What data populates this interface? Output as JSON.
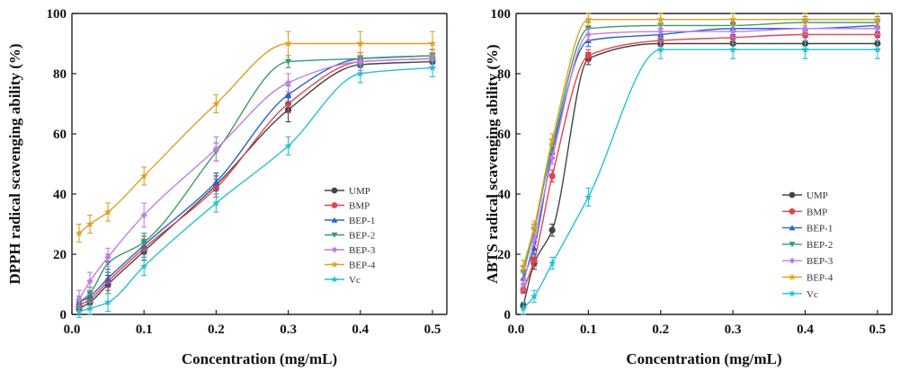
{
  "chart_data": [
    {
      "type": "line",
      "ylabel": "DPPH radical scavenging ability (%)",
      "xlabel": "Concentration (mg/mL)",
      "xlim": [
        0,
        0.52
      ],
      "ylim": [
        0,
        100
      ],
      "xticks": [
        0.0,
        0.1,
        0.2,
        0.3,
        0.4,
        0.5
      ],
      "xtick_labels": [
        "0.0",
        "0.1",
        "0.2",
        "0.3",
        "0.4",
        "0.5"
      ],
      "yticks": [
        0,
        20,
        40,
        60,
        80,
        100
      ],
      "ytick_labels": [
        "0",
        "20",
        "40",
        "60",
        "80",
        "100"
      ],
      "legend_position": "bottom-right",
      "grid": false,
      "x": [
        0.01,
        0.025,
        0.05,
        0.1,
        0.2,
        0.3,
        0.4,
        0.5
      ],
      "series": [
        {
          "name": "UMP",
          "color": "#444444",
          "marker": "circle",
          "values": [
            2,
            4,
            10,
            21,
            43,
            68,
            83,
            84
          ],
          "errors": [
            2,
            2,
            3,
            3,
            3,
            4,
            3,
            2
          ]
        },
        {
          "name": "BMP",
          "color": "#e8424b",
          "marker": "circle",
          "values": [
            3,
            5,
            11,
            22,
            42,
            70,
            84,
            85
          ],
          "errors": [
            2,
            2,
            3,
            3,
            3,
            3,
            2,
            2
          ]
        },
        {
          "name": "BEP-1",
          "color": "#2c62c9",
          "marker": "triangle-up",
          "values": [
            4,
            6,
            12,
            23,
            44,
            73,
            85,
            86
          ],
          "errors": [
            2,
            2,
            3,
            3,
            3,
            3,
            2,
            2
          ]
        },
        {
          "name": "BEP-2",
          "color": "#3a9a6e",
          "marker": "triangle-down",
          "values": [
            4,
            7,
            17,
            24,
            54,
            84,
            85,
            86
          ],
          "errors": [
            2,
            2,
            3,
            3,
            3,
            2,
            2,
            2
          ]
        },
        {
          "name": "BEP-3",
          "color": "#c47be6",
          "marker": "diamond",
          "values": [
            5,
            11,
            19,
            33,
            55,
            77,
            84,
            85
          ],
          "errors": [
            3,
            3,
            3,
            4,
            4,
            3,
            3,
            2
          ]
        },
        {
          "name": "BEP-4",
          "color": "#e0a020",
          "marker": "star",
          "values": [
            27,
            30,
            34,
            46,
            70,
            90,
            90,
            90
          ],
          "errors": [
            3,
            3,
            3,
            3,
            3,
            4,
            4,
            4
          ]
        },
        {
          "name": "Vc",
          "color": "#27c0d4",
          "marker": "star",
          "values": [
            1,
            2,
            4,
            16,
            37,
            56,
            80,
            82
          ],
          "errors": [
            2,
            2,
            3,
            3,
            3,
            3,
            3,
            3
          ]
        }
      ]
    },
    {
      "type": "line",
      "ylabel": "ABTS radical scavenging ability (%)",
      "xlabel": "Concentration (mg/mL)",
      "xlim": [
        0,
        0.52
      ],
      "ylim": [
        0,
        100
      ],
      "xticks": [
        0.0,
        0.1,
        0.2,
        0.3,
        0.4,
        0.5
      ],
      "xtick_labels": [
        "0.0",
        "0.1",
        "0.2",
        "0.3",
        "0.4",
        "0.5"
      ],
      "yticks": [
        0,
        20,
        40,
        60,
        80,
        100
      ],
      "ytick_labels": [
        "0",
        "20",
        "40",
        "60",
        "80",
        "100"
      ],
      "legend_position": "bottom-right",
      "grid": false,
      "x": [
        0.01,
        0.025,
        0.05,
        0.1,
        0.2,
        0.3,
        0.4,
        0.5
      ],
      "series": [
        {
          "name": "UMP",
          "color": "#444444",
          "marker": "circle",
          "values": [
            3,
            17,
            28,
            85,
            90,
            90,
            90,
            90
          ],
          "errors": [
            1,
            2,
            2,
            2,
            2,
            2,
            2,
            2
          ]
        },
        {
          "name": "BMP",
          "color": "#e8424b",
          "marker": "circle",
          "values": [
            8,
            18,
            46,
            86,
            91,
            92,
            93,
            93
          ],
          "errors": [
            1,
            2,
            2,
            2,
            2,
            2,
            2,
            2
          ]
        },
        {
          "name": "BEP-1",
          "color": "#2c62c9",
          "marker": "triangle-up",
          "values": [
            12,
            22,
            54,
            91,
            93,
            95,
            95,
            96
          ],
          "errors": [
            2,
            2,
            2,
            2,
            2,
            2,
            2,
            2
          ]
        },
        {
          "name": "BEP-2",
          "color": "#3a9a6e",
          "marker": "triangle-down",
          "values": [
            14,
            28,
            56,
            95,
            96,
            96,
            97,
            97
          ],
          "errors": [
            2,
            2,
            2,
            2,
            2,
            2,
            2,
            2
          ]
        },
        {
          "name": "BEP-3",
          "color": "#c47be6",
          "marker": "diamond",
          "values": [
            10,
            25,
            52,
            93,
            94,
            94,
            95,
            95
          ],
          "errors": [
            2,
            2,
            2,
            2,
            2,
            2,
            2,
            2
          ]
        },
        {
          "name": "BEP-4",
          "color": "#e0a020",
          "marker": "star",
          "values": [
            16,
            29,
            58,
            98,
            98,
            98,
            98,
            98
          ],
          "errors": [
            2,
            2,
            2,
            2,
            2,
            2,
            2,
            2
          ]
        },
        {
          "name": "Vc",
          "color": "#27c0d4",
          "marker": "star",
          "values": [
            2,
            6,
            17,
            39,
            88,
            88,
            88,
            88
          ],
          "errors": [
            2,
            2,
            2,
            3,
            3,
            3,
            3,
            3
          ]
        }
      ]
    }
  ]
}
